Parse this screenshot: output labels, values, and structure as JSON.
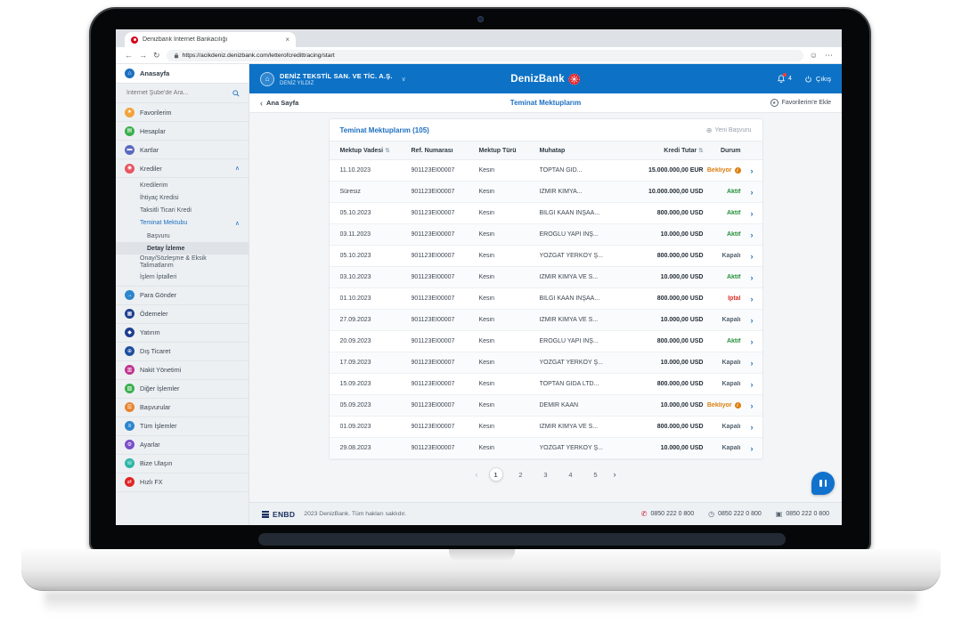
{
  "browser": {
    "tab_title": "Denizbank İnternet Bankacılığı",
    "url": "https://acikdeniz.denizbank.com/letterofcredittracing/start"
  },
  "header": {
    "company_name": "DENİZ TEKSTİL SAN. VE TİC. A.Ş.",
    "user_name": "DENİZ YILDIZ",
    "brand": "DenizBank",
    "notification_count": "4",
    "logout_label": "Çıkış"
  },
  "subheader": {
    "back_label": "Ana Sayfa",
    "page_title": "Teminat Mektuplarım",
    "add_favorite_label": "Favorilerim'e Ekle"
  },
  "sidebar": {
    "home_label": "Anasayfa",
    "search_placeholder": "İnternet Şube'de Ara...",
    "items": [
      {
        "label": "Favorilerim",
        "icon": "star",
        "color": "#f2a33c",
        "glyph": "★"
      },
      {
        "label": "Hesaplar",
        "icon": "accounts",
        "color": "#3aaf4e",
        "glyph": "▤"
      },
      {
        "label": "Kartlar",
        "icon": "cards",
        "color": "#5b6ac0",
        "glyph": "▬"
      },
      {
        "label": "Krediler",
        "icon": "loans",
        "color": "#e85560",
        "glyph": "◉",
        "expanded": true,
        "children": [
          {
            "label": "Kredilerim"
          },
          {
            "label": "İhtiyaç Kredisi"
          },
          {
            "label": "Taksitli Ticari Kredi"
          },
          {
            "label": "Teminat Mektubu",
            "highlight": true,
            "expanded": true,
            "children": [
              {
                "label": "Başvuru"
              },
              {
                "label": "Detay İzleme",
                "selected": true
              }
            ]
          },
          {
            "label": "Onay/Sözleşme & Eksik Talimatlarım"
          },
          {
            "label": "İşlem İptalleri"
          }
        ]
      },
      {
        "label": "Para Gönder",
        "icon": "send-money",
        "color": "#2e86cd",
        "glyph": "→"
      },
      {
        "label": "Ödemeler",
        "icon": "payments",
        "color": "#1f3f8f",
        "glyph": "▦"
      },
      {
        "label": "Yatırım",
        "icon": "investment",
        "color": "#1f3f8f",
        "glyph": "◆"
      },
      {
        "label": "Dış Ticaret",
        "icon": "foreign-trade",
        "color": "#1f4f9f",
        "glyph": "⊕"
      },
      {
        "label": "Nakit Yönetimi",
        "icon": "cash-management",
        "color": "#c03390",
        "glyph": "▥"
      },
      {
        "label": "Diğer İşlemler",
        "icon": "other-transactions",
        "color": "#3aaf4e",
        "glyph": "▧"
      },
      {
        "label": "Başvurular",
        "icon": "applications",
        "color": "#e8842e",
        "glyph": "☰"
      },
      {
        "label": "Tüm İşlemler",
        "icon": "all-transactions",
        "color": "#2e86cd",
        "glyph": "≡"
      },
      {
        "label": "Ayarlar",
        "icon": "settings",
        "color": "#7b4fc8",
        "glyph": "⚙"
      },
      {
        "label": "Bize Ulaşın",
        "icon": "contact-us",
        "color": "#2bb5a8",
        "glyph": "☏"
      },
      {
        "label": "Hızlı FX",
        "icon": "fast-fx",
        "color": "#e02424",
        "glyph": "⇄"
      }
    ]
  },
  "table": {
    "title": "Teminat Mektuplarım (105)",
    "new_application_label": "Yeni Başvuru",
    "columns": {
      "vadesi": "Mektup Vadesi",
      "ref": "Ref. Numarası",
      "turu": "Mektup Türü",
      "muhatap": "Muhatap",
      "tutar": "Kredi Tutar",
      "durum": "Durum"
    },
    "sort_glyph": "⇅",
    "status_colors": {
      "waiting": "#dd7d0e",
      "active": "#27903b",
      "closed": "#52616e",
      "cancelled": "#d93025"
    },
    "rows": [
      {
        "vadesi": "11.10.2023",
        "ref": "901123EI00007",
        "turu": "Kesin",
        "muhatap": "TOPTAN GID...",
        "tutar": "15.000.000,00 EUR",
        "durum": "Bekliyor",
        "durum_type": "waiting",
        "info": true
      },
      {
        "vadesi": "Süresiz",
        "ref": "901123EI00007",
        "turu": "Kesin",
        "muhatap": "İZMİR KİMYA...",
        "tutar": "10.000.000,00 USD",
        "durum": "Aktif",
        "durum_type": "active",
        "info": false
      },
      {
        "vadesi": "05.10.2023",
        "ref": "901123EI00007",
        "turu": "Kesin",
        "muhatap": "BİLGİ KAAN İNŞAA...",
        "tutar": "800.000,00 USD",
        "durum": "Aktif",
        "durum_type": "active",
        "info": false
      },
      {
        "vadesi": "03.11.2023",
        "ref": "901123EI00007",
        "turu": "Kesin",
        "muhatap": "EROĞLU YAPI İNŞ...",
        "tutar": "10.000,00 USD",
        "durum": "Aktif",
        "durum_type": "active",
        "info": false
      },
      {
        "vadesi": "05.10.2023",
        "ref": "901123EI00007",
        "turu": "Kesin",
        "muhatap": "YOZGAT YERKÖY Ş...",
        "tutar": "800.000,00 USD",
        "durum": "Kapalı",
        "durum_type": "closed",
        "info": false
      },
      {
        "vadesi": "03.10.2023",
        "ref": "901123EI00007",
        "turu": "Kesin",
        "muhatap": "İZMİR KİMYA VE S...",
        "tutar": "10.000,00 USD",
        "durum": "Aktif",
        "durum_type": "active",
        "info": false
      },
      {
        "vadesi": "01.10.2023",
        "ref": "901123EI00007",
        "turu": "Kesin",
        "muhatap": "BİLGİ KAAN İNŞAA...",
        "tutar": "800.000,00 USD",
        "durum": "İptal",
        "durum_type": "cancelled",
        "info": false
      },
      {
        "vadesi": "27.09.2023",
        "ref": "901123EI00007",
        "turu": "Kesin",
        "muhatap": "İZMİR KİMYA VE S...",
        "tutar": "10.000,00 USD",
        "durum": "Kapalı",
        "durum_type": "closed",
        "info": false
      },
      {
        "vadesi": "20.09.2023",
        "ref": "901123EI00007",
        "turu": "Kesin",
        "muhatap": "EROĞLU YAPI İNŞ...",
        "tutar": "800.000,00 USD",
        "durum": "Aktif",
        "durum_type": "active",
        "info": false
      },
      {
        "vadesi": "17.09.2023",
        "ref": "901123EI00007",
        "turu": "Kesin",
        "muhatap": "YOZGAT YERKÖY Ş...",
        "tutar": "10.000,00 USD",
        "durum": "Kapalı",
        "durum_type": "closed",
        "info": false
      },
      {
        "vadesi": "15.09.2023",
        "ref": "901123EI00007",
        "turu": "Kesin",
        "muhatap": "TOPTAN GIDA LTD...",
        "tutar": "800.000,00 USD",
        "durum": "Kapalı",
        "durum_type": "closed",
        "info": false
      },
      {
        "vadesi": "05.09.2023",
        "ref": "901123EI00007",
        "turu": "Kesin",
        "muhatap": "DEMİR KAAN",
        "tutar": "10.000,00 USD",
        "durum": "Bekliyor",
        "durum_type": "waiting",
        "info": true
      },
      {
        "vadesi": "01.09.2023",
        "ref": "901123EI00007",
        "turu": "Kesin",
        "muhatap": "İZMİR KİMYA VE S...",
        "tutar": "800.000,00 USD",
        "durum": "Kapalı",
        "durum_type": "closed",
        "info": false
      },
      {
        "vadesi": "29.08.2023",
        "ref": "901123EI00007",
        "turu": "Kesin",
        "muhatap": "YOZGAT YERKÖY Ş...",
        "tutar": "10.000,00 USD",
        "durum": "Kapalı",
        "durum_type": "closed",
        "info": false
      }
    ]
  },
  "pagination": {
    "prev": "‹",
    "next": "›",
    "pages": [
      "1",
      "2",
      "3",
      "4",
      "5"
    ],
    "current": "1"
  },
  "footer": {
    "logo": "ENBD",
    "copyright": "2023 DenizBank. Tüm hakları saklıdır.",
    "contacts": [
      {
        "icon": "phone",
        "number": "0850 222 0 800"
      },
      {
        "icon": "support",
        "number": "0850 222 0 800"
      },
      {
        "icon": "mobile",
        "number": "0850 222 0 800"
      }
    ]
  }
}
